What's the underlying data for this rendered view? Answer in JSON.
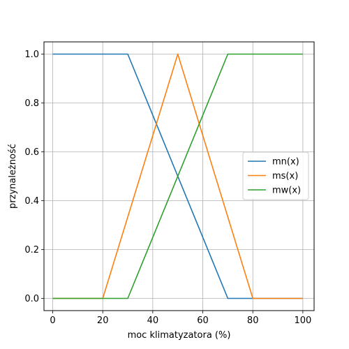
{
  "chart_data": {
    "type": "line",
    "title": "",
    "xlabel": "moc klimatyzatora (%)",
    "ylabel": "przynależność",
    "xlim": [
      -3.5,
      104.5
    ],
    "ylim": [
      -0.05,
      1.05
    ],
    "xticks": [
      0,
      20,
      40,
      60,
      80,
      100
    ],
    "yticks": [
      0.0,
      0.2,
      0.4,
      0.6,
      0.8,
      1.0
    ],
    "xtick_labels": [
      "0",
      "20",
      "40",
      "60",
      "80",
      "100"
    ],
    "ytick_labels": [
      "0.0",
      "0.2",
      "0.4",
      "0.6",
      "0.8",
      "1.0"
    ],
    "grid": true,
    "legend_position": "center-right",
    "series": [
      {
        "name": "mn(x)",
        "color": "#1f77b4",
        "x": [
          0,
          30,
          70,
          100
        ],
        "y": [
          1,
          1,
          0,
          0
        ]
      },
      {
        "name": "ms(x)",
        "color": "#ff7f0e",
        "x": [
          0,
          20,
          50,
          80,
          100
        ],
        "y": [
          0,
          0,
          1,
          0,
          0
        ]
      },
      {
        "name": "mw(x)",
        "color": "#2ca02c",
        "x": [
          0,
          30,
          70,
          100
        ],
        "y": [
          0,
          0,
          1,
          1
        ]
      }
    ]
  }
}
